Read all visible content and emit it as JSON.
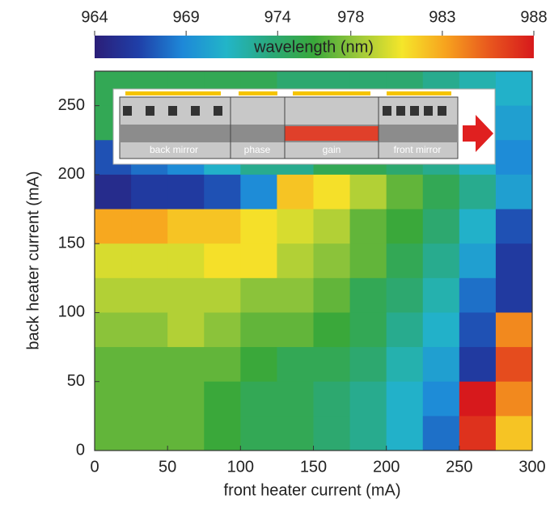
{
  "chart_data": {
    "type": "heatmap",
    "x": [
      12.5,
      37.5,
      62.5,
      87.5,
      112.5,
      137.5,
      162.5,
      187.5,
      212.5,
      237.5,
      262.5,
      287.5
    ],
    "y": [
      262.5,
      237.5,
      212.5,
      187.5,
      162.5,
      137.5,
      112.5,
      87.5,
      62.5,
      37.5,
      12.5
    ],
    "z": [
      [
        975,
        975,
        975,
        975,
        975,
        974,
        974,
        974,
        974,
        973,
        972,
        971
      ],
      [
        975,
        975,
        975,
        975,
        975,
        975,
        974,
        974,
        973,
        972,
        971,
        970
      ],
      [
        967,
        968,
        969,
        971,
        973,
        973,
        975,
        975,
        974,
        973,
        971,
        969
      ],
      [
        965,
        966,
        966,
        967,
        969,
        982,
        981,
        979,
        977,
        975,
        973,
        970
      ],
      [
        983,
        983,
        982,
        982,
        981,
        980,
        979,
        977,
        976,
        974,
        971,
        967
      ],
      [
        980,
        980,
        980,
        981,
        981,
        979,
        978,
        977,
        975,
        973,
        970,
        966
      ],
      [
        979,
        979,
        979,
        979,
        978,
        978,
        977,
        975,
        974,
        972,
        968,
        966
      ],
      [
        978,
        978,
        979,
        978,
        977,
        977,
        976,
        975,
        973,
        971,
        967,
        984
      ],
      [
        977,
        977,
        977,
        977,
        976,
        975,
        975,
        974,
        972,
        970,
        966,
        986
      ],
      [
        977,
        977,
        977,
        976,
        975,
        975,
        974,
        973,
        971,
        969,
        988,
        984
      ],
      [
        977,
        977,
        977,
        976,
        975,
        975,
        974,
        973,
        971,
        968,
        987,
        982
      ]
    ],
    "xlabel": "front heater current (mA)",
    "ylabel": "back heater current (mA)",
    "xlim": [
      0,
      300
    ],
    "xticks": [
      0,
      50,
      100,
      150,
      200,
      250,
      300
    ],
    "ylim": [
      0,
      275
    ],
    "yticks": [
      0,
      50,
      100,
      150,
      200,
      250
    ],
    "colorbar_label": "wavelength (nm)",
    "zlim": [
      964,
      988
    ],
    "zticks": [
      964,
      969,
      974,
      978,
      983,
      988
    ],
    "colormap": [
      "#2b1e78",
      "#1f3fa8",
      "#1e88d8",
      "#22b5c8",
      "#2aa87a",
      "#3aa83a",
      "#9bc83a",
      "#f5e62a",
      "#f7a21e",
      "#e8561e",
      "#d7191c"
    ]
  },
  "inset": {
    "labels": [
      "back mirror",
      "phase",
      "gain",
      "front mirror"
    ]
  }
}
